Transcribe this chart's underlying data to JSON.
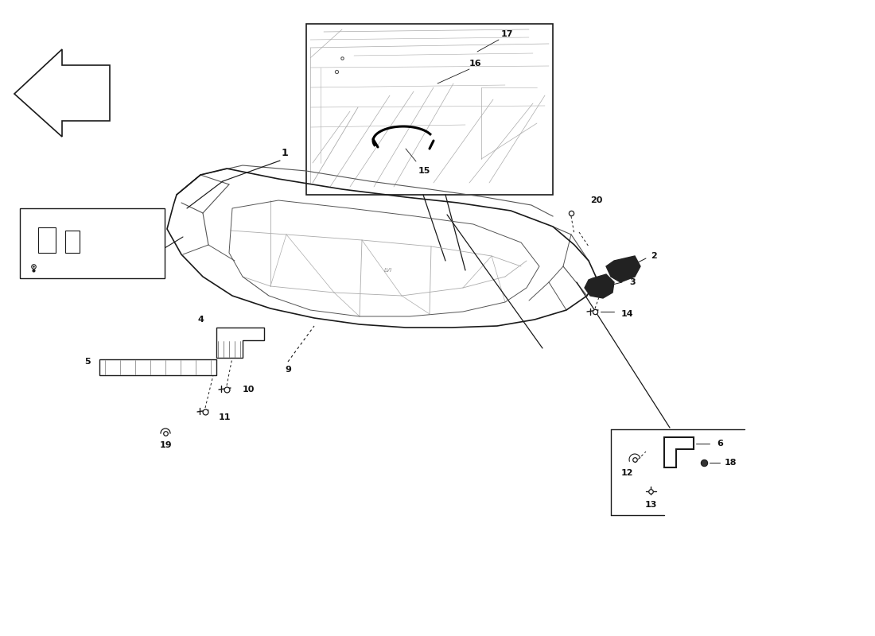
{
  "bg_color": "#ffffff",
  "line_color": "#1a1a1a",
  "fig_width": 11.0,
  "fig_height": 8.0,
  "dpi": 100
}
